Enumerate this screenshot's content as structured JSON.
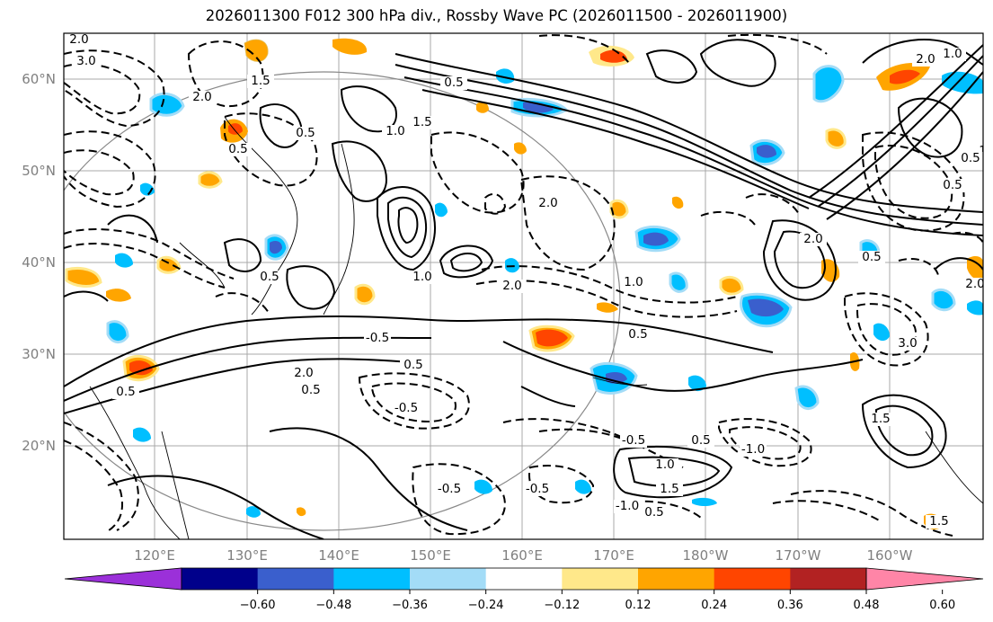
{
  "title": "2026011300 F012 300 hPa div., Rossby Wave PC (2026011500 - 2026011900)",
  "map": {
    "lat_labels": [
      "60°N",
      "50°N",
      "40°N",
      "30°N",
      "20°N"
    ],
    "lon_labels": [
      "120°E",
      "130°E",
      "140°E",
      "150°E",
      "160°E",
      "170°E",
      "180°W",
      "170°W",
      "160°W"
    ],
    "contour_labels": [
      "2.0",
      "3.0",
      "1.5",
      "2.0",
      "0.5",
      "1.5",
      "0.5",
      "2.0",
      "1.0",
      "0.5",
      "0.5",
      "1.0",
      "0.5",
      "1.5",
      "2.0",
      "0.5",
      "1.0",
      "2.0",
      "1.0",
      "0.5",
      "-0.5",
      "0.5",
      "2.0",
      "0.5",
      "-0.5",
      "-0.5",
      "0.5",
      "-0.5",
      "-0.5",
      "-1.0",
      "1.0",
      "1.5",
      "-1.0",
      "0.5",
      "3.0",
      "1.5",
      "1.5",
      "2.0",
      "0.5",
      "2.0",
      "0.5"
    ]
  },
  "colorbar": {
    "ticks": [
      "−0.60",
      "−0.48",
      "−0.36",
      "−0.24",
      "−0.12",
      "0.12",
      "0.24",
      "0.36",
      "0.48",
      "0.60"
    ],
    "colors": [
      "#9b30d9",
      "#00008b",
      "#3a5fcd",
      "#00bfff",
      "#a3dcf7",
      "#ffffff",
      "#ffe88a",
      "#ffa500",
      "#ff4500",
      "#b22222",
      "#ff85a7"
    ]
  }
}
